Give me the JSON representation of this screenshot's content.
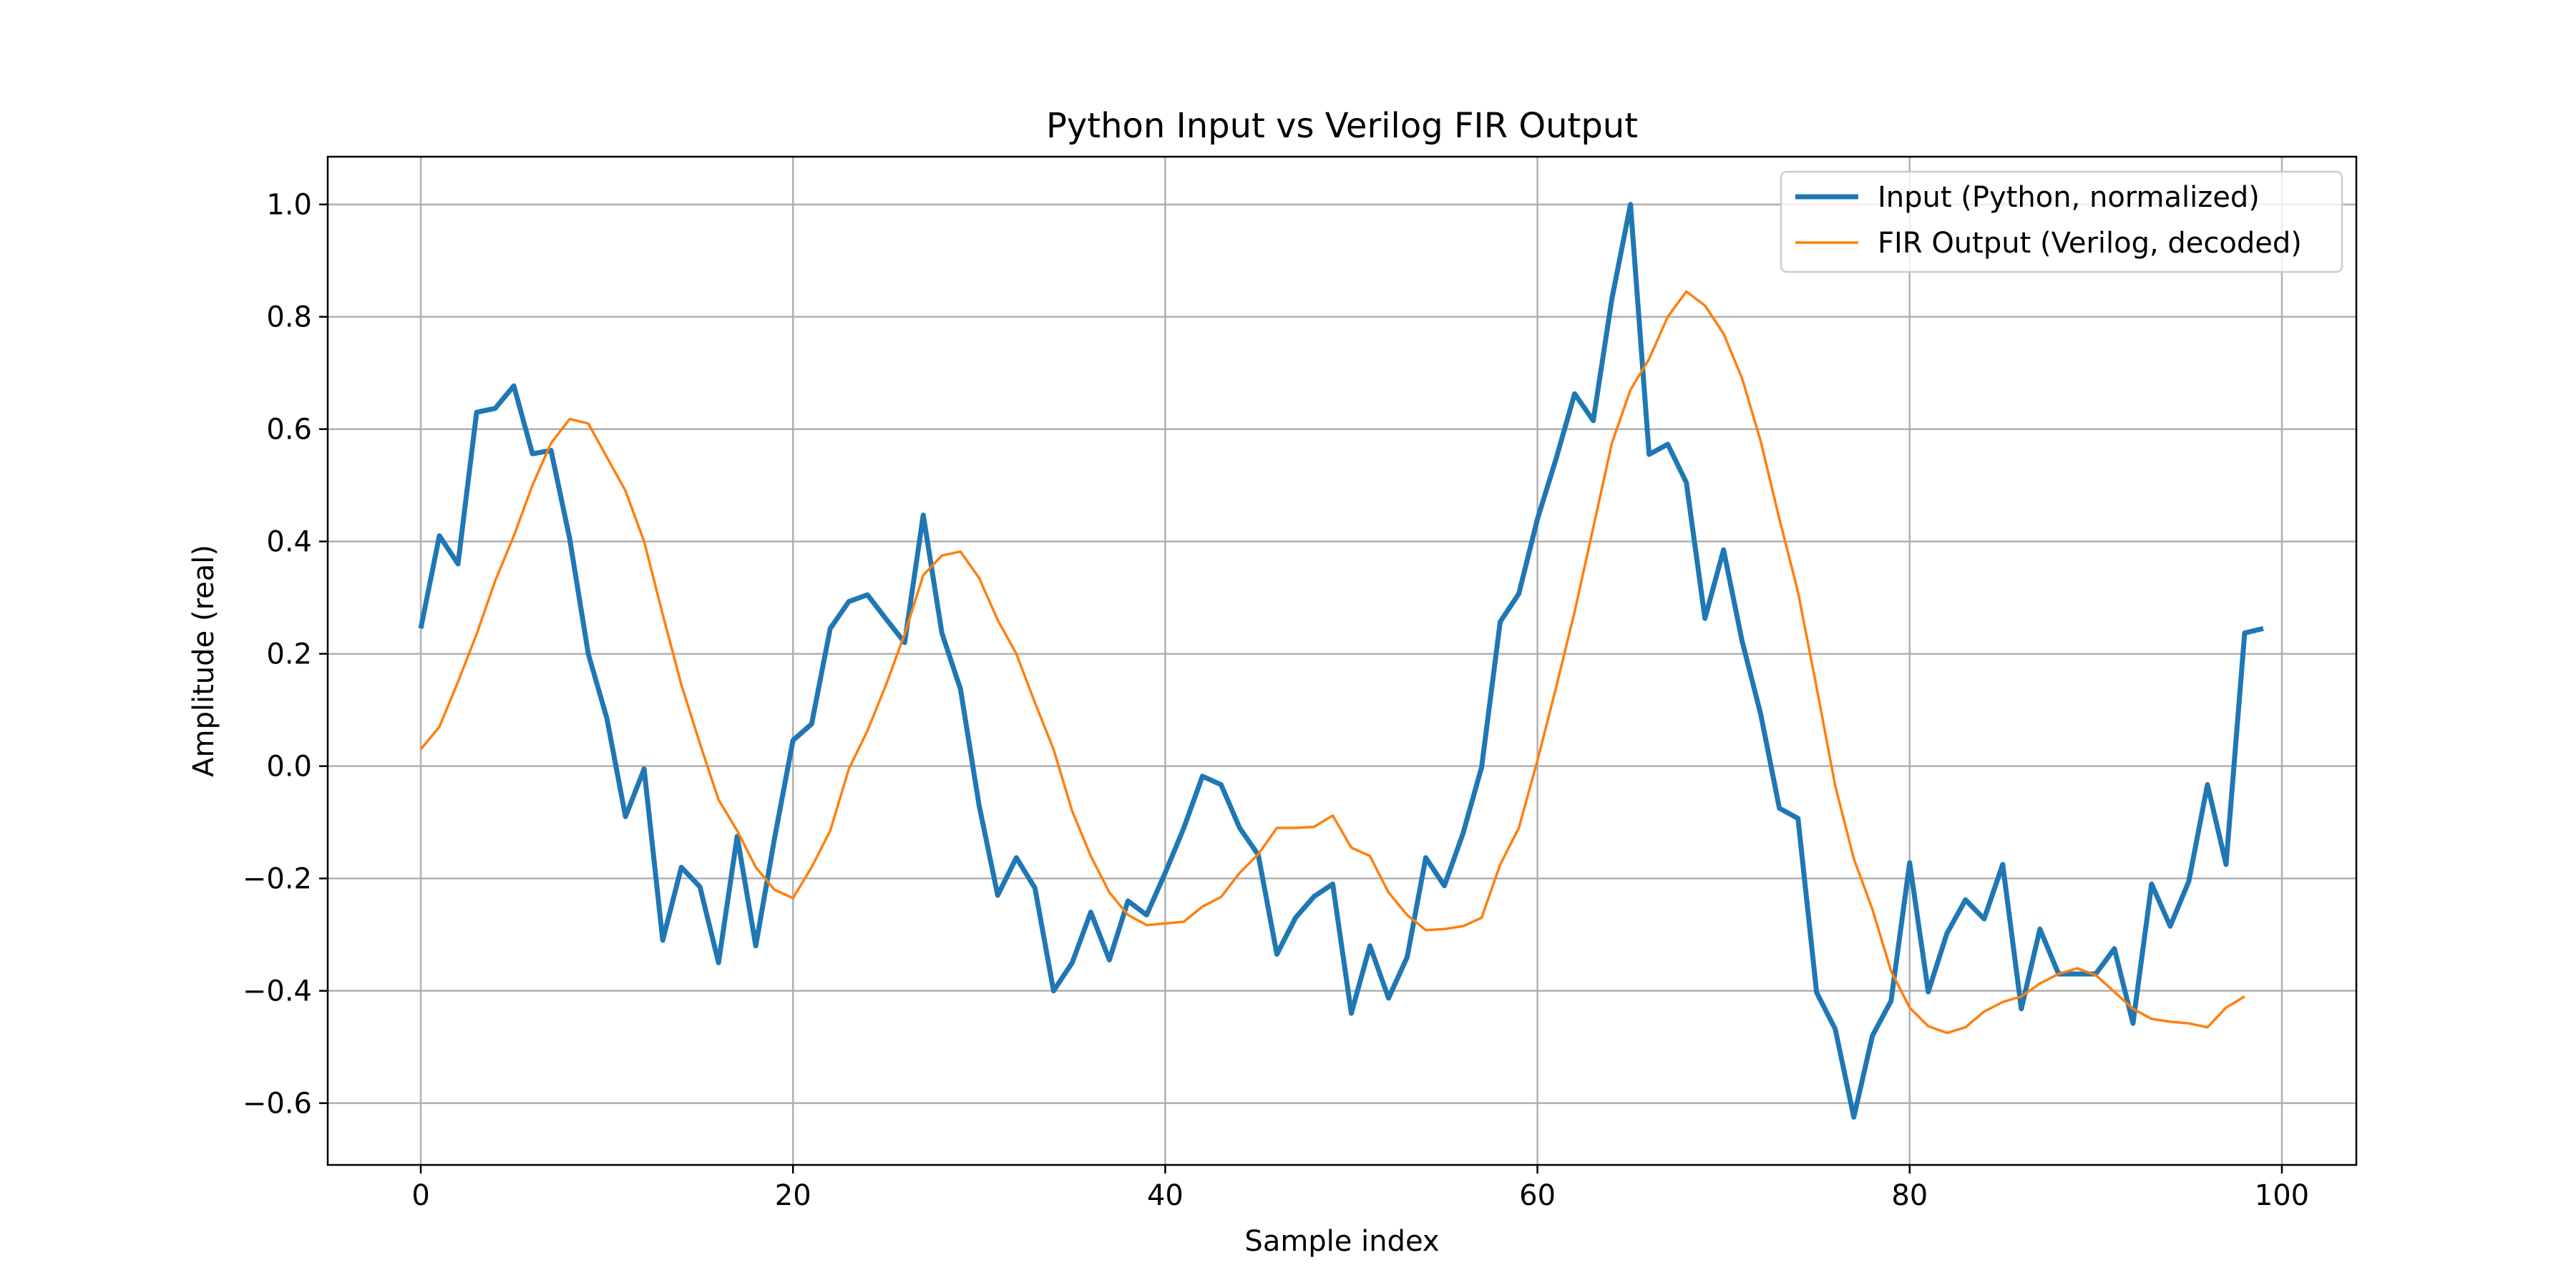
{
  "chart_data": {
    "type": "line",
    "title": "Python Input vs Verilog FIR Output",
    "xlabel": "Sample index",
    "ylabel": "Amplitude (real)",
    "xlim": [
      -5,
      104
    ],
    "ylim": [
      -0.71,
      1.085
    ],
    "xticks": [
      0,
      20,
      40,
      60,
      80,
      100
    ],
    "xtick_labels": [
      "0",
      "20",
      "40",
      "60",
      "80",
      "100"
    ],
    "yticks": [
      -0.6,
      -0.4,
      -0.2,
      0.0,
      0.2,
      0.4,
      0.6,
      0.8,
      1.0
    ],
    "ytick_labels": [
      "−0.6",
      "−0.4",
      "−0.2",
      "0.0",
      "0.2",
      "0.4",
      "0.6",
      "0.8",
      "1.0"
    ],
    "grid": true,
    "legend": "top-right",
    "series": [
      {
        "name": "Input (Python, normalized)",
        "color": "#1f77b4",
        "x_start": 0,
        "values": [
          0.245,
          0.41,
          0.36,
          0.63,
          0.637,
          0.677,
          0.556,
          0.562,
          0.405,
          0.2,
          0.085,
          -0.09,
          -0.005,
          -0.31,
          -0.18,
          -0.215,
          -0.35,
          -0.125,
          -0.32,
          -0.13,
          0.046,
          0.075,
          0.245,
          0.293,
          0.305,
          0.262,
          0.22,
          0.447,
          0.237,
          0.137,
          -0.07,
          -0.23,
          -0.163,
          -0.217,
          -0.4,
          -0.35,
          -0.26,
          -0.345,
          -0.24,
          -0.265,
          -0.19,
          -0.11,
          -0.018,
          -0.033,
          -0.11,
          -0.158,
          -0.335,
          -0.27,
          -0.232,
          -0.21,
          -0.44,
          -0.32,
          -0.413,
          -0.34,
          -0.163,
          -0.213,
          -0.12,
          -0.002,
          0.257,
          0.307,
          0.44,
          0.547,
          0.663,
          0.615,
          0.832,
          1.0,
          0.555,
          0.573,
          0.505,
          0.263,
          0.385,
          0.222,
          0.092,
          -0.075,
          -0.093,
          -0.403,
          -0.468,
          -0.625,
          -0.48,
          -0.418,
          -0.172,
          -0.402,
          -0.298,
          -0.238,
          -0.272,
          -0.175,
          -0.432,
          -0.29,
          -0.37,
          -0.37,
          -0.37,
          -0.325,
          -0.458,
          -0.21,
          -0.285,
          -0.205,
          -0.033,
          -0.175,
          0.237,
          0.245
        ]
      },
      {
        "name": "FIR Output (Verilog, decoded)",
        "color": "#ff7f0e",
        "x_start": 0,
        "values": [
          0.03,
          0.07,
          0.15,
          0.235,
          0.33,
          0.41,
          0.5,
          0.575,
          0.618,
          0.61,
          0.55,
          0.49,
          0.4,
          0.27,
          0.145,
          0.04,
          -0.06,
          -0.115,
          -0.18,
          -0.22,
          -0.235,
          -0.18,
          -0.115,
          -0.005,
          0.063,
          0.145,
          0.235,
          0.34,
          0.375,
          0.382,
          0.335,
          0.26,
          0.2,
          0.113,
          0.03,
          -0.08,
          -0.16,
          -0.225,
          -0.265,
          -0.283,
          -0.28,
          -0.277,
          -0.25,
          -0.233,
          -0.19,
          -0.157,
          -0.11,
          -0.11,
          -0.108,
          -0.088,
          -0.145,
          -0.16,
          -0.225,
          -0.265,
          -0.292,
          -0.29,
          -0.285,
          -0.27,
          -0.175,
          -0.11,
          0.01,
          0.14,
          0.275,
          0.425,
          0.575,
          0.67,
          0.725,
          0.8,
          0.845,
          0.82,
          0.77,
          0.69,
          0.578,
          0.44,
          0.31,
          0.14,
          -0.035,
          -0.165,
          -0.255,
          -0.365,
          -0.43,
          -0.463,
          -0.475,
          -0.465,
          -0.437,
          -0.42,
          -0.41,
          -0.387,
          -0.37,
          -0.36,
          -0.372,
          -0.402,
          -0.432,
          -0.45,
          -0.455,
          -0.458,
          -0.465,
          -0.43,
          -0.41
        ]
      }
    ]
  }
}
